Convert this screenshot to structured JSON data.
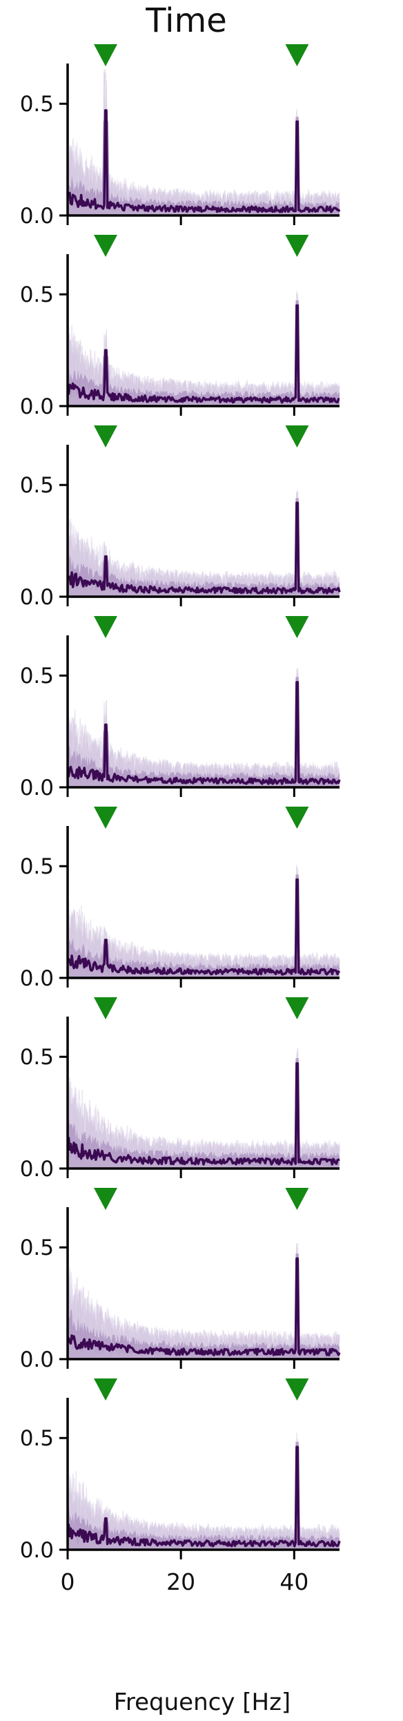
{
  "figure": {
    "title": "Time",
    "xlabel": "Frequency [Hz]"
  },
  "colors": {
    "mean_line": "#3b0a52",
    "band_dark": "#8f6ba8",
    "band_light": "#cdbfdc",
    "trials": "#dcd3e8",
    "marker": "#148a14",
    "axis": "#000000"
  },
  "chart_data": {
    "type": "line",
    "panel_count": 8,
    "xlim": [
      0,
      48
    ],
    "ylim": [
      0,
      0.68
    ],
    "xticks": [
      0,
      20,
      40
    ],
    "xtick_labels": [
      "0",
      "20",
      "40"
    ],
    "yticks": [
      0.0,
      0.5
    ],
    "ytick_labels": [
      "0.0",
      "0.5"
    ],
    "marker_frequencies": [
      6.7,
      40.5
    ],
    "marker_shape": "downward triangle",
    "grid": false,
    "legend": "none",
    "panels": [
      {
        "peak_low": 0.47,
        "peak_high": 0.42,
        "baseline": 0.05
      },
      {
        "peak_low": 0.25,
        "peak_high": 0.45,
        "baseline": 0.05
      },
      {
        "peak_low": 0.18,
        "peak_high": 0.42,
        "baseline": 0.05
      },
      {
        "peak_low": 0.28,
        "peak_high": 0.47,
        "baseline": 0.05
      },
      {
        "peak_low": 0.17,
        "peak_high": 0.44,
        "baseline": 0.05
      },
      {
        "peak_low": 0.06,
        "peak_high": 0.47,
        "baseline": 0.06
      },
      {
        "peak_low": 0.06,
        "peak_high": 0.45,
        "baseline": 0.06
      },
      {
        "peak_low": 0.14,
        "peak_high": 0.46,
        "baseline": 0.05
      }
    ]
  }
}
